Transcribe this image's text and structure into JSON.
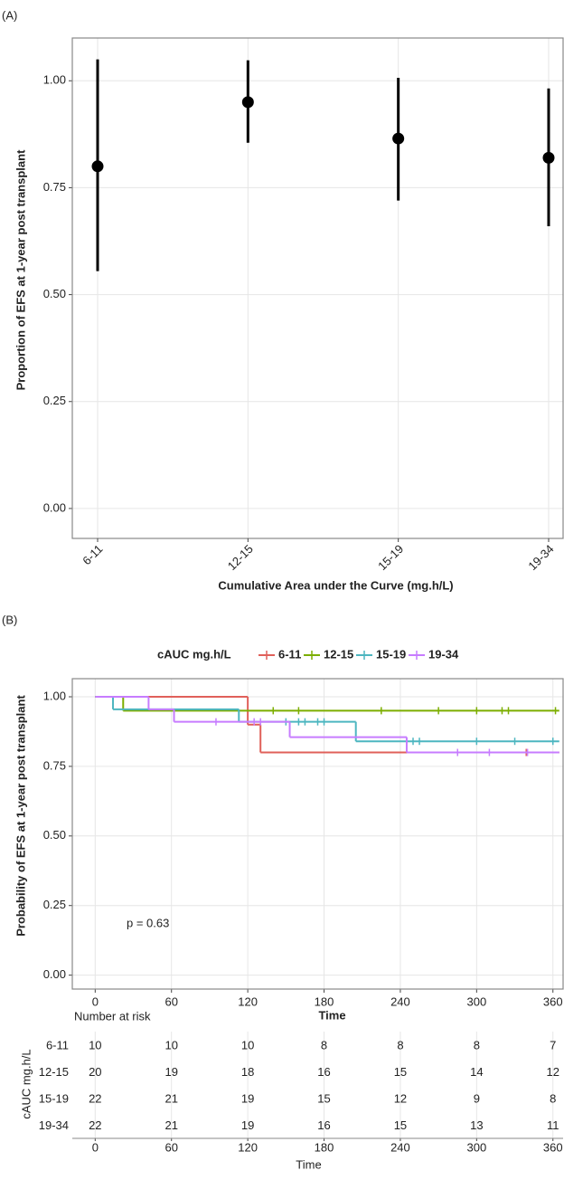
{
  "chart_data": [
    {
      "type": "pointrange",
      "panel_label": "(A)",
      "xlabel": "Cumulative Area under the Curve (mg.h/L)",
      "ylabel": "Proportion of EFS at 1-year post transplant",
      "categories": [
        "6-11",
        "12-15",
        "15-19",
        "19-34"
      ],
      "values": [
        0.8,
        0.95,
        0.865,
        0.82
      ],
      "lower": [
        0.555,
        0.855,
        0.72,
        0.66
      ],
      "upper": [
        1.05,
        1.048,
        1.007,
        0.982
      ],
      "color": "#000000",
      "ylim": [
        -0.07,
        1.1
      ],
      "yticks": [
        {
          "value": 0,
          "label": "0.00"
        },
        {
          "value": 0.25,
          "label": "0.25"
        },
        {
          "value": 0.5,
          "label": "0.50"
        },
        {
          "value": 0.75,
          "label": "0.75"
        },
        {
          "value": 1,
          "label": "1.00"
        }
      ],
      "grid": true
    },
    {
      "type": "step",
      "panel_label": "(B)",
      "legend_title": "cAUC mg.h/L",
      "legend_position": "top",
      "annotation": "p = 0.63",
      "xlabel": "Time",
      "ylabel": "Probability of EFS at 1-year post transplant",
      "xlim": [
        -18,
        368
      ],
      "xticks": [
        0,
        60,
        120,
        180,
        240,
        300,
        360
      ],
      "ylim": [
        -0.05,
        1.065
      ],
      "yticks": [
        {
          "value": 0,
          "label": "0.00"
        },
        {
          "value": 0.25,
          "label": "0.25"
        },
        {
          "value": 0.5,
          "label": "0.50"
        },
        {
          "value": 0.75,
          "label": "0.75"
        },
        {
          "value": 1,
          "label": "1.00"
        }
      ],
      "grid": true,
      "series": [
        {
          "name": "6-11",
          "color": "#e0605a",
          "x": [
            0,
            120,
            130,
            365
          ],
          "values": [
            1,
            0.9,
            0.8,
            0.8
          ],
          "censor_x": [
            339
          ]
        },
        {
          "name": "12-15",
          "color": "#7cae00",
          "x": [
            0,
            22,
            365
          ],
          "values": [
            1,
            0.95,
            0.95
          ],
          "censor_x": [
            140,
            160,
            225,
            270,
            300,
            320,
            325,
            362
          ]
        },
        {
          "name": "15-19",
          "color": "#4db6c0",
          "x": [
            0,
            14,
            113,
            205,
            365
          ],
          "values": [
            1,
            0.955,
            0.91,
            0.84,
            0.84
          ],
          "censor_x": [
            150,
            160,
            165,
            175,
            180,
            250,
            255,
            300,
            330,
            360
          ]
        },
        {
          "name": "19-34",
          "color": "#c77cff",
          "x": [
            0,
            42,
            62,
            153,
            245,
            365
          ],
          "values": [
            1,
            0.955,
            0.91,
            0.855,
            0.8,
            0.8
          ],
          "censor_x": [
            95,
            125,
            130,
            285,
            310,
            340
          ]
        }
      ]
    },
    {
      "type": "risk_table",
      "title": "Number at risk",
      "ylabel": "cAUC mg.h/L",
      "xlabel": "Time",
      "xlim": [
        -18,
        368
      ],
      "xticks": [
        0,
        60,
        120,
        180,
        240,
        300,
        360
      ],
      "rows": [
        {
          "name": "6-11",
          "color": "#e0605a",
          "values": [
            10,
            10,
            10,
            8,
            8,
            8,
            7
          ]
        },
        {
          "name": "12-15",
          "color": "#7cae00",
          "values": [
            20,
            19,
            18,
            16,
            15,
            14,
            12
          ]
        },
        {
          "name": "15-19",
          "color": "#4db6c0",
          "values": [
            22,
            21,
            19,
            15,
            12,
            9,
            8
          ]
        },
        {
          "name": "19-34",
          "color": "#c77cff",
          "values": [
            22,
            21,
            19,
            16,
            15,
            13,
            11
          ]
        }
      ]
    }
  ]
}
